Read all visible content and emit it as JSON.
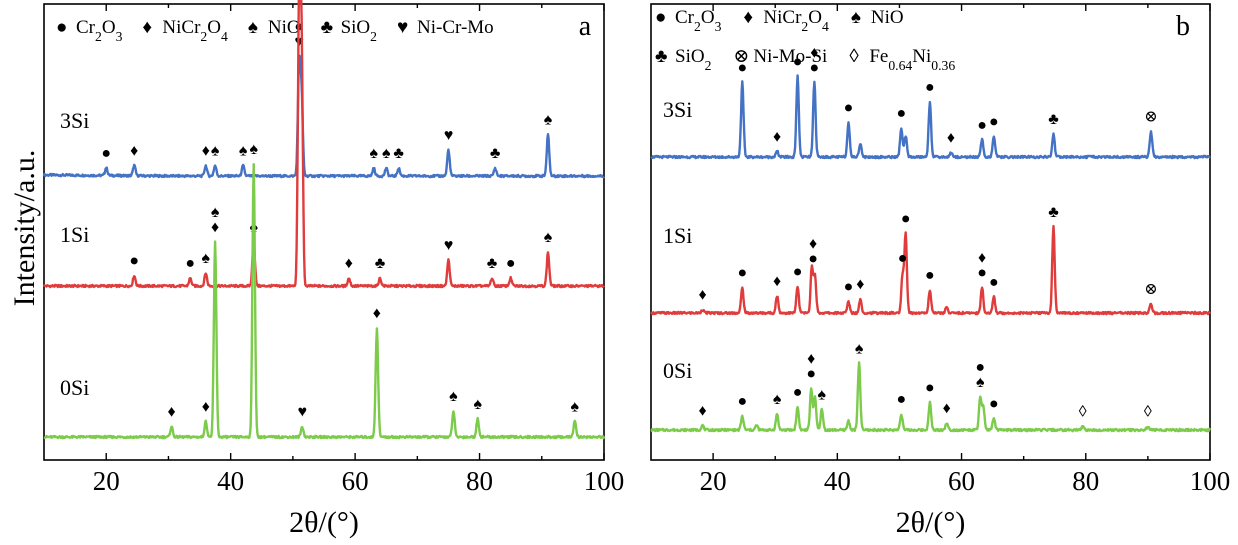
{
  "figure": {
    "y_label": "Intensity/a.u."
  },
  "chart_data": [
    {
      "type": "line",
      "panel_label": "a",
      "xlabel": "2θ/(°)",
      "ylabel": "Intensity/a.u.",
      "xlim": [
        10,
        100
      ],
      "x_ticks": [
        20,
        40,
        60,
        80,
        100
      ],
      "y_ticks": "none",
      "grid": false,
      "legend": {
        "placement": "top",
        "entries": [
          {
            "symbol": "●",
            "label": "Cr",
            "sub1": "2",
            "mid": "O",
            "sub2": "3"
          },
          {
            "symbol": "♦",
            "label": "NiCr",
            "sub1": "2",
            "mid": "O",
            "sub2": "4"
          },
          {
            "symbol": "♠",
            "label": "NiO"
          },
          {
            "symbol": "♣",
            "label": "SiO",
            "sub1": "2"
          },
          {
            "symbol": "♥",
            "label": "Ni-Cr-Mo"
          }
        ]
      },
      "series": [
        {
          "name": "3Si",
          "color": "#4472C4",
          "peaks": [
            [
              20,
              3
            ],
            [
              24.5,
              4
            ],
            [
              36,
              4
            ],
            [
              37.5,
              4
            ],
            [
              42,
              4
            ],
            [
              51,
              42
            ],
            [
              51.4,
              30
            ],
            [
              63,
              3
            ],
            [
              65,
              3
            ],
            [
              67,
              3
            ],
            [
              75,
              10
            ],
            [
              82.5,
              3
            ],
            [
              91,
              16
            ]
          ],
          "markers": [
            [
              20,
              "●"
            ],
            [
              24.5,
              "♦"
            ],
            [
              36,
              "♦"
            ],
            [
              37.5,
              "♠"
            ],
            [
              42,
              "♠"
            ],
            [
              51,
              "●♥"
            ],
            [
              63,
              "♠"
            ],
            [
              65,
              "♠"
            ],
            [
              67,
              "♣"
            ],
            [
              75,
              "♥"
            ],
            [
              82.5,
              "♣"
            ],
            [
              91,
              "♠"
            ]
          ]
        },
        {
          "name": "1Si",
          "color": "#E03C3C",
          "peaks": [
            [
              24.5,
              4
            ],
            [
              33.5,
              3
            ],
            [
              36,
              5
            ],
            [
              43.7,
              17
            ],
            [
              51,
              108
            ],
            [
              51.4,
              90
            ],
            [
              59,
              3
            ],
            [
              64,
              3
            ],
            [
              75,
              10
            ],
            [
              82,
              3
            ],
            [
              85,
              3
            ],
            [
              91,
              13
            ]
          ],
          "markers": [
            [
              24.5,
              "●"
            ],
            [
              33.5,
              "●"
            ],
            [
              36,
              "♠"
            ],
            [
              43.7,
              "♠"
            ],
            [
              59,
              "♦"
            ],
            [
              64,
              "♣"
            ],
            [
              75,
              "♥"
            ],
            [
              82,
              "♣"
            ],
            [
              85,
              "●"
            ],
            [
              91,
              "♠"
            ]
          ]
        },
        {
          "name": "0Si",
          "color": "#7CCB4B",
          "peaks": [
            [
              30.5,
              4
            ],
            [
              36,
              6
            ],
            [
              37.5,
              75
            ],
            [
              43.7,
              105
            ],
            [
              51.5,
              4
            ],
            [
              63.5,
              42
            ],
            [
              75.8,
              10
            ],
            [
              79.7,
              7
            ],
            [
              95.3,
              6
            ]
          ],
          "markers": [
            [
              30.5,
              "♦"
            ],
            [
              36,
              "♦"
            ],
            [
              37.5,
              "♠♦"
            ],
            [
              43.7,
              "♠"
            ],
            [
              51.5,
              "♥"
            ],
            [
              63.5,
              "♦"
            ],
            [
              75.8,
              "♠"
            ],
            [
              79.7,
              "♠"
            ],
            [
              95.3,
              "♠"
            ]
          ]
        }
      ]
    },
    {
      "type": "line",
      "panel_label": "b",
      "xlabel": "2θ/(°)",
      "xlim": [
        10,
        100
      ],
      "x_ticks": [
        20,
        40,
        60,
        80,
        100
      ],
      "y_ticks": "none",
      "grid": false,
      "legend": {
        "placement": "top",
        "rows": [
          [
            {
              "symbol": "●",
              "label": "Cr",
              "sub1": "2",
              "mid": "O",
              "sub2": "3"
            },
            {
              "symbol": "♦",
              "label": "NiCr",
              "sub1": "2",
              "mid": "O",
              "sub2": "4"
            },
            {
              "symbol": "♠",
              "label": "NiO"
            }
          ],
          [
            {
              "symbol": "♣",
              "label": "SiO",
              "sub1": "2"
            },
            {
              "symbol": "⊗",
              "label": "Ni-Mo-Si"
            },
            {
              "symbol": "◊",
              "label": "Fe",
              "sub1": "0.64",
              "mid": "Ni",
              "sub2": "0.36"
            }
          ]
        ]
      },
      "series": [
        {
          "name": "3Si",
          "color": "#4472C4",
          "peaks": [
            [
              24.7,
              65
            ],
            [
              30.3,
              5
            ],
            [
              33.6,
              70
            ],
            [
              36.3,
              65
            ],
            [
              41.8,
              30
            ],
            [
              43.7,
              12
            ],
            [
              50.3,
              25
            ],
            [
              51,
              18
            ],
            [
              54.9,
              48
            ],
            [
              58.3,
              4
            ],
            [
              63.3,
              15
            ],
            [
              65.2,
              18
            ],
            [
              74.8,
              20
            ],
            [
              90.5,
              22
            ]
          ],
          "markers": [
            [
              24.7,
              "●"
            ],
            [
              30.3,
              "♦"
            ],
            [
              33.6,
              "●"
            ],
            [
              36.3,
              "♦●"
            ],
            [
              41.8,
              "●"
            ],
            [
              50.3,
              "●"
            ],
            [
              54.9,
              "●"
            ],
            [
              58.3,
              "♦"
            ],
            [
              63.3,
              "●"
            ],
            [
              65.2,
              "●"
            ],
            [
              74.8,
              "♣"
            ],
            [
              90.5,
              "⊗"
            ]
          ]
        },
        {
          "name": "1Si",
          "color": "#E03C3C",
          "peaks": [
            [
              18.3,
              3
            ],
            [
              24.7,
              22
            ],
            [
              30.3,
              15
            ],
            [
              33.6,
              23
            ],
            [
              35.9,
              40
            ],
            [
              36.4,
              32
            ],
            [
              41.8,
              10
            ],
            [
              43.7,
              12
            ],
            [
              50.5,
              32
            ],
            [
              51,
              68
            ],
            [
              54.9,
              20
            ],
            [
              57.6,
              5
            ],
            [
              63.3,
              22
            ],
            [
              65.2,
              14
            ],
            [
              74.8,
              75
            ],
            [
              90.5,
              8
            ]
          ],
          "markers": [
            [
              18.3,
              "♦"
            ],
            [
              24.7,
              "●"
            ],
            [
              30.3,
              "♦"
            ],
            [
              33.6,
              "●"
            ],
            [
              36.1,
              "♦●"
            ],
            [
              41.8,
              "●"
            ],
            [
              43.7,
              "♦"
            ],
            [
              50.5,
              "●"
            ],
            [
              51,
              "●"
            ],
            [
              54.9,
              "●"
            ],
            [
              63.3,
              "♦●"
            ],
            [
              65.2,
              "●"
            ],
            [
              74.8,
              "♣"
            ],
            [
              90.5,
              "⊗"
            ]
          ]
        },
        {
          "name": "0Si",
          "color": "#7CCB4B",
          "peaks": [
            [
              18.3,
              4
            ],
            [
              24.7,
              12
            ],
            [
              27,
              4
            ],
            [
              30.3,
              14
            ],
            [
              33.6,
              20
            ],
            [
              35.8,
              36
            ],
            [
              36.4,
              28
            ],
            [
              37.5,
              18
            ],
            [
              41.8,
              8
            ],
            [
              43.5,
              58
            ],
            [
              50.3,
              14
            ],
            [
              54.9,
              24
            ],
            [
              57.6,
              6
            ],
            [
              63,
              28
            ],
            [
              63.5,
              20
            ],
            [
              65.2,
              10
            ],
            [
              79.5,
              3
            ],
            [
              90,
              3
            ]
          ],
          "markers": [
            [
              18.3,
              "♦"
            ],
            [
              24.7,
              "●"
            ],
            [
              30.3,
              "♠"
            ],
            [
              33.6,
              "●"
            ],
            [
              35.8,
              "♦●"
            ],
            [
              37.5,
              "♠"
            ],
            [
              43.5,
              "♠"
            ],
            [
              50.3,
              "●"
            ],
            [
              54.9,
              "●"
            ],
            [
              57.6,
              "♦"
            ],
            [
              63,
              "●♠"
            ],
            [
              65.2,
              "●"
            ],
            [
              79.5,
              "◊"
            ],
            [
              90,
              "◊"
            ]
          ]
        }
      ]
    }
  ]
}
